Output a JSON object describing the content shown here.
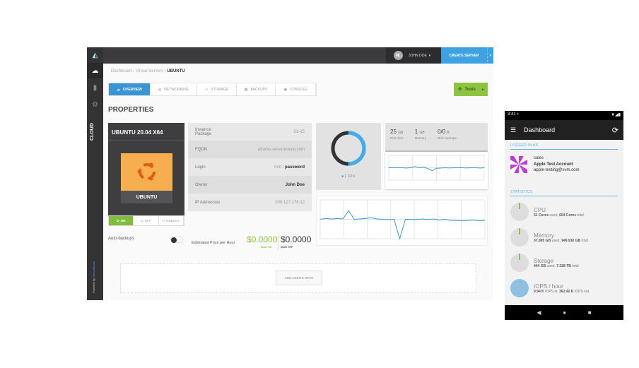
{
  "colors": {
    "accent": "#3ea2e0",
    "success": "#8cc43f",
    "sidebar": "#333336",
    "ubuntu_orange": "#f6ae4f"
  },
  "sidebar": {
    "items": [
      {
        "icon": "logo-icon"
      },
      {
        "icon": "cloud-icon"
      },
      {
        "icon": "bar-chart-icon"
      },
      {
        "icon": "gear-icon"
      }
    ],
    "section_label": "CLOUD",
    "powered_by": "Powered by",
    "brand": "ServerMania"
  },
  "topbar": {
    "avatar_initials": "ML",
    "user_name": "JOHN DOE",
    "create_label": "CREATE SERVER"
  },
  "breadcrumb": {
    "items": [
      "Dashboard",
      "Virtual Servers"
    ],
    "current": "UBUNTU",
    "separator": "›"
  },
  "tabs": [
    {
      "label": "OVERVIEW",
      "icon": "cloud-icon",
      "active": true
    },
    {
      "label": "NETWORKING",
      "icon": "globe-icon"
    },
    {
      "label": "STORAGE",
      "icon": "storage-icon"
    },
    {
      "label": "BACKUPS",
      "icon": "backups-icon"
    },
    {
      "label": "CONSOLE",
      "icon": "console-icon"
    }
  ],
  "tools_label": "Tools",
  "properties_title": "PROPERTIES",
  "server": {
    "title": "UBUNTU 20.04 X64",
    "os": "UBUNTU",
    "power": {
      "on": "ON",
      "off": "OFF",
      "reboot": "REBOOT",
      "state": "on"
    }
  },
  "info": [
    {
      "label": "Instance Package",
      "value": "S1-25"
    },
    {
      "label": "FQDN",
      "value": "ubuntu.servermania.com"
    },
    {
      "label": "Login",
      "value": "root /",
      "value_bold": "password"
    },
    {
      "label": "Owner",
      "value_bold": "John Doe"
    },
    {
      "label": "IP Addresses",
      "value": "209.127.178.12"
    }
  ],
  "cpu": {
    "legend": "1 CPU",
    "fraction": 0.5
  },
  "stats": [
    {
      "value": "25",
      "unit": "GB",
      "label": "Disk Size"
    },
    {
      "value": "1",
      "unit": "GB",
      "label": "Memory"
    },
    {
      "value": "0/0",
      "unit": "B",
      "label": "Disk backups"
    }
  ],
  "auto_backups": {
    "label": "Auto-backups",
    "enabled": false
  },
  "price": {
    "label": "Estimated Price per Hour",
    "on_value": "$0.0000",
    "on_label": "Mode ON",
    "off_value": "$0.0000",
    "off_label": "Mode OFF"
  },
  "note_button": "ADD USER'S NOTE",
  "chart_small": [
    50,
    50,
    51,
    50,
    49,
    50,
    55,
    50,
    52,
    47,
    38,
    48,
    49,
    50,
    49,
    50,
    50,
    50,
    49,
    50,
    50,
    49,
    50
  ],
  "chart_large": [
    50,
    52,
    51,
    52,
    51,
    72,
    50,
    51,
    52,
    54,
    51,
    50,
    49,
    50,
    0,
    50,
    50,
    49,
    51,
    49,
    51,
    48,
    50,
    47,
    47,
    46,
    47,
    48,
    46,
    47
  ],
  "phone": {
    "time": "3:41",
    "title": "Dashboard",
    "logged_in_label": "LOGGED IN AS",
    "user": "sales",
    "account": "Apple Test Account",
    "email": "apple-testing@svm.com",
    "statistics_label": "STATISTICS",
    "stats": [
      {
        "title": "CPU",
        "used": "31 Cores",
        "used_suffix": " used, ",
        "total": "604 Cores",
        "total_suffix": " total"
      },
      {
        "title": "Memory",
        "used": "37.895 GB",
        "used_suffix": " used, ",
        "total": "940.916 GB",
        "total_suffix": " total"
      },
      {
        "title": "Storage",
        "used": "444 GB",
        "used_suffix": " used, ",
        "total": "7.328 TB",
        "total_suffix": " total"
      },
      {
        "title": "IOPS / hour",
        "used": "9.94 K",
        "used_suffix": " IOPS in, ",
        "total": "362.42 K",
        "total_suffix": " IOPS out"
      }
    ]
  }
}
